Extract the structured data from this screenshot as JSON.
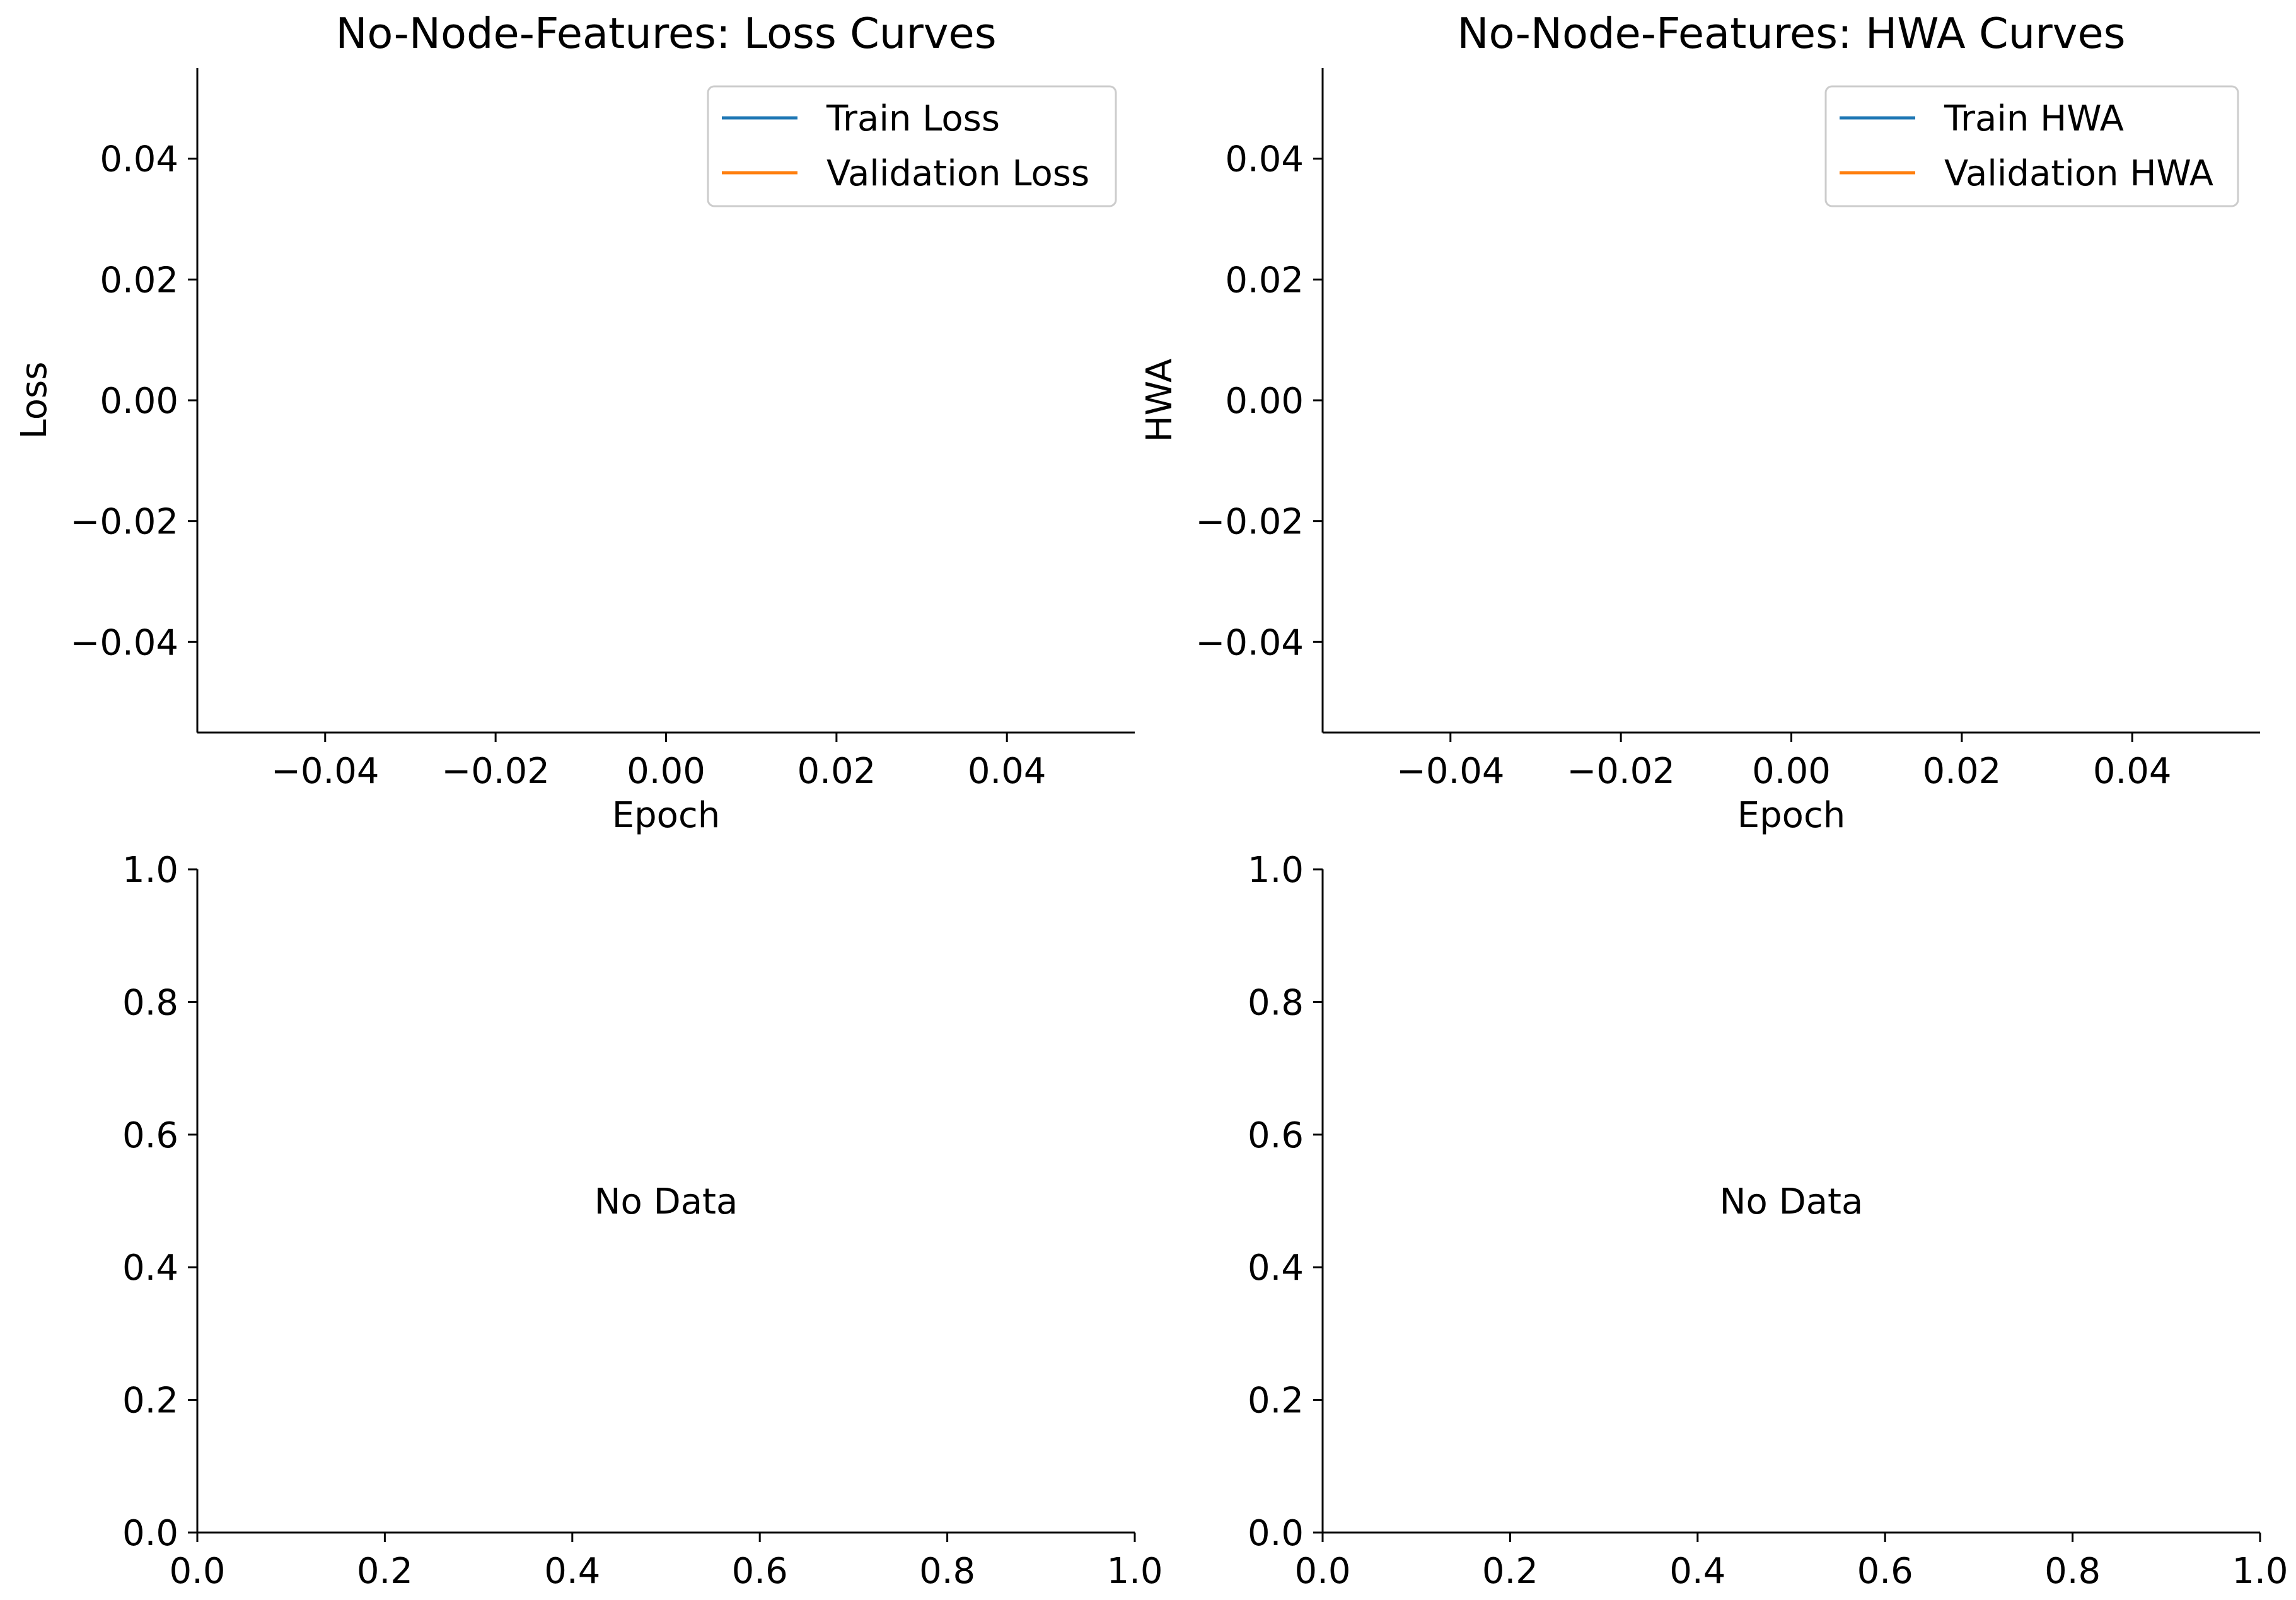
{
  "chart_data": [
    {
      "type": "line",
      "title": "No-Node-Features: Loss Curves",
      "xlabel": "Epoch",
      "ylabel": "Loss",
      "xlim": [
        -0.055,
        0.055
      ],
      "ylim": [
        -0.055,
        0.055
      ],
      "xticks": [
        -0.04,
        -0.02,
        0.0,
        0.02,
        0.04
      ],
      "yticks": [
        -0.04,
        -0.02,
        0.0,
        0.02,
        0.04
      ],
      "xtick_labels": [
        "−0.04",
        "−0.02",
        "0.00",
        "0.02",
        "0.04"
      ],
      "ytick_labels": [
        "−0.04",
        "−0.02",
        "0.00",
        "0.02",
        "0.04"
      ],
      "grid": false,
      "legend_position": "top-right",
      "series": [
        {
          "name": "Train Loss",
          "color": "#1f77b4",
          "x": [],
          "y": []
        },
        {
          "name": "Validation Loss",
          "color": "#ff7f0e",
          "x": [],
          "y": []
        }
      ]
    },
    {
      "type": "line",
      "title": "No-Node-Features: HWA Curves",
      "xlabel": "Epoch",
      "ylabel": "HWA",
      "xlim": [
        -0.055,
        0.055
      ],
      "ylim": [
        -0.055,
        0.055
      ],
      "xticks": [
        -0.04,
        -0.02,
        0.0,
        0.02,
        0.04
      ],
      "yticks": [
        -0.04,
        -0.02,
        0.0,
        0.02,
        0.04
      ],
      "xtick_labels": [
        "−0.04",
        "−0.02",
        "0.00",
        "0.02",
        "0.04"
      ],
      "ytick_labels": [
        "−0.04",
        "−0.02",
        "0.00",
        "0.02",
        "0.04"
      ],
      "grid": false,
      "legend_position": "top-right",
      "series": [
        {
          "name": "Train HWA",
          "color": "#1f77b4",
          "x": [],
          "y": []
        },
        {
          "name": "Validation HWA",
          "color": "#ff7f0e",
          "x": [],
          "y": []
        }
      ]
    },
    {
      "type": "line",
      "title": "",
      "xlabel": "",
      "ylabel": "",
      "xlim": [
        0,
        1
      ],
      "ylim": [
        0,
        1
      ],
      "xticks": [
        0,
        0.2,
        0.4,
        0.6,
        0.8,
        1.0
      ],
      "yticks": [
        0,
        0.2,
        0.4,
        0.6,
        0.8,
        1.0
      ],
      "xtick_labels": [
        "0.0",
        "0.2",
        "0.4",
        "0.6",
        "0.8",
        "1.0"
      ],
      "ytick_labels": [
        "0.0",
        "0.2",
        "0.4",
        "0.6",
        "0.8",
        "1.0"
      ],
      "grid": false,
      "annotation": {
        "text": "No Data",
        "x": 0.5,
        "y": 0.5
      },
      "series": []
    },
    {
      "type": "line",
      "title": "",
      "xlabel": "",
      "ylabel": "",
      "xlim": [
        0,
        1
      ],
      "ylim": [
        0,
        1
      ],
      "xticks": [
        0,
        0.2,
        0.4,
        0.6,
        0.8,
        1.0
      ],
      "yticks": [
        0,
        0.2,
        0.4,
        0.6,
        0.8,
        1.0
      ],
      "xtick_labels": [
        "0.0",
        "0.2",
        "0.4",
        "0.6",
        "0.8",
        "1.0"
      ],
      "ytick_labels": [
        "0.0",
        "0.2",
        "0.4",
        "0.6",
        "0.8",
        "1.0"
      ],
      "grid": false,
      "annotation": {
        "text": "No Data",
        "x": 0.5,
        "y": 0.5
      },
      "series": []
    }
  ]
}
